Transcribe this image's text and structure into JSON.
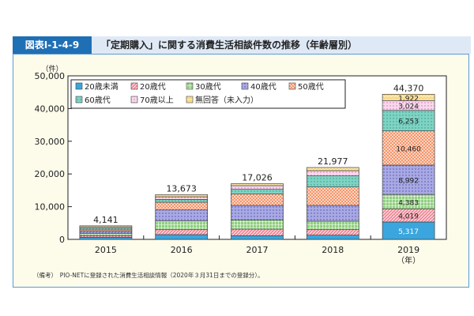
{
  "header": {
    "figure_no": "図表Ⅰ-1-4-9",
    "title": "「定期購入」に関する消費生活相談件数の推移（年齢層別）"
  },
  "note": "（備考）　PIO-NETに登録された消費生活相談情報（2020年３月31日までの登録分）。",
  "chart_data": {
    "type": "bar",
    "stacked": true,
    "title": "「定期購入」に関する消費生活相談件数の推移（年齢層別）",
    "ylabel": "（件）",
    "xlabel": "（年）",
    "ylim": [
      0,
      50000
    ],
    "yticks": [
      0,
      10000,
      20000,
      30000,
      40000,
      50000
    ],
    "ytick_labels": [
      "0",
      "10,000",
      "20,000",
      "30,000",
      "40,000",
      "50,000"
    ],
    "categories": [
      "2015",
      "2016",
      "2017",
      "2018",
      "2019"
    ],
    "legend_position": "top-left",
    "series": [
      {
        "name": "20歳未満",
        "color": "#3aa6dd",
        "pattern": "solid",
        "values": [
          640,
          1450,
          1130,
          1290,
          5317
        ]
      },
      {
        "name": "20歳代",
        "color": "#f08a9a",
        "pattern": "hatch",
        "values": [
          480,
          1530,
          2010,
          1690,
          4019
        ]
      },
      {
        "name": "30歳代",
        "color": "#8fd07e",
        "pattern": "grid",
        "values": [
          640,
          2650,
          2740,
          2580,
          4383
        ]
      },
      {
        "name": "40歳代",
        "color": "#a9a9e3",
        "pattern": "dots",
        "values": [
          640,
          3380,
          4510,
          4830,
          8992
        ]
      },
      {
        "name": "50歳代",
        "color": "#f4956a",
        "pattern": "checker",
        "values": [
          480,
          2330,
          3460,
          5640,
          10460
        ]
      },
      {
        "name": "60歳代",
        "color": "#7fd3c4",
        "pattern": "dots",
        "values": [
          560,
          880,
          1450,
          3380,
          6253
        ]
      },
      {
        "name": "70歳以上",
        "color": "#f8d8ec",
        "pattern": "dots",
        "values": [
          400,
          800,
          1130,
          1610,
          3024
        ]
      },
      {
        "name": "無回答（未入力）",
        "color": "#f9d77a",
        "pattern": "wave",
        "values": [
          301,
          653,
          596,
          957,
          1922
        ]
      }
    ],
    "totals": [
      "4,141",
      "13,673",
      "17,026",
      "21,977",
      "44,370"
    ],
    "data_labels_2019": [
      "5,317",
      "4,019",
      "4,383",
      "8,992",
      "10,460",
      "6,253",
      "3,024",
      "1,922"
    ]
  }
}
